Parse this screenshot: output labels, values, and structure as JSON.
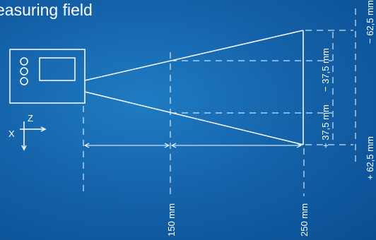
{
  "title": "easuring field",
  "sensor": {
    "axis_z_label": "Z",
    "axis_x_label": "X"
  },
  "labels": {
    "distance_150": "150 mm",
    "distance_250": "250 mm",
    "inner_minus": "− 37,5 mm",
    "inner_plus": "+ 37,5 mm",
    "outer_minus": "− 62,5 mm",
    "outer_plus": "+ 62,5 mm"
  },
  "colors": {
    "background": "#135fa6",
    "line": "#ffffff"
  }
}
